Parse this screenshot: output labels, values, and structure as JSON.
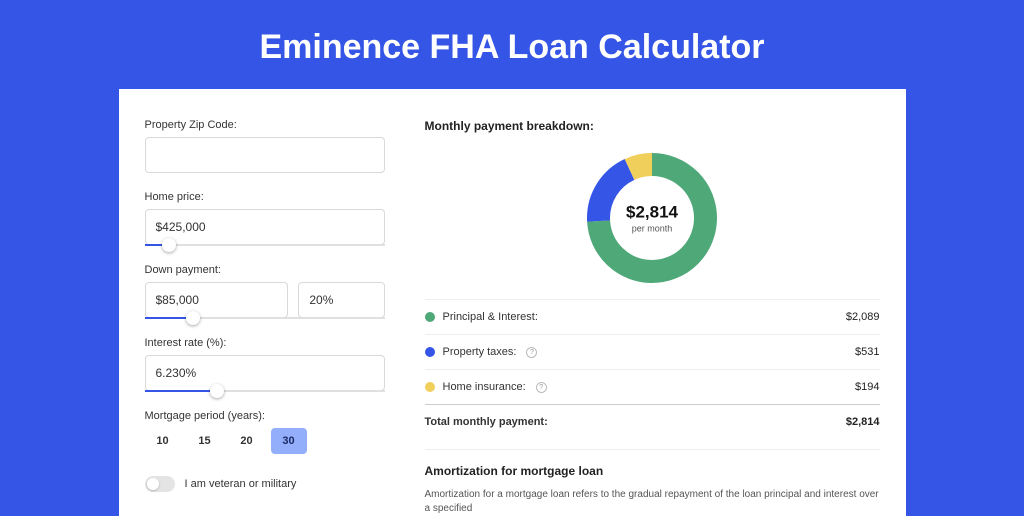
{
  "page": {
    "title": "Eminence FHA Loan Calculator",
    "background_color": "#3555e6",
    "card_background": "#ffffff"
  },
  "form": {
    "zip": {
      "label": "Property Zip Code:",
      "value": ""
    },
    "home_price": {
      "label": "Home price:",
      "value": "$425,000",
      "slider_pct": 10
    },
    "down_payment": {
      "label": "Down payment:",
      "value": "$85,000",
      "pct": "20%",
      "slider_pct": 20
    },
    "interest_rate": {
      "label": "Interest rate (%):",
      "value": "6.230%",
      "slider_pct": 30
    },
    "mortgage_period": {
      "label": "Mortgage period (years):",
      "options": [
        "10",
        "15",
        "20",
        "30"
      ],
      "selected_index": 3
    },
    "veteran_toggle": {
      "label": "I am veteran or military",
      "on": false
    }
  },
  "breakdown": {
    "title": "Monthly payment breakdown:",
    "donut": {
      "center_amount": "$2,814",
      "center_sub": "per month",
      "segments": [
        {
          "label": "Principal & Interest:",
          "value": "$2,089",
          "color": "#4fa878",
          "pct": 74,
          "info_icon": false
        },
        {
          "label": "Property taxes:",
          "value": "$531",
          "color": "#3555e6",
          "pct": 19,
          "info_icon": true
        },
        {
          "label": "Home insurance:",
          "value": "$194",
          "color": "#f1cf5b",
          "pct": 7,
          "info_icon": true
        }
      ]
    },
    "total_label": "Total monthly payment:",
    "total_value": "$2,814"
  },
  "amortization": {
    "title": "Amortization for mortgage loan",
    "text": "Amortization for a mortgage loan refers to the gradual repayment of the loan principal and interest over a specified"
  },
  "chart_style": {
    "type": "donut",
    "outer_radius": 65,
    "inner_radius": 42,
    "stroke_width": 23,
    "start_angle_deg": -90
  }
}
